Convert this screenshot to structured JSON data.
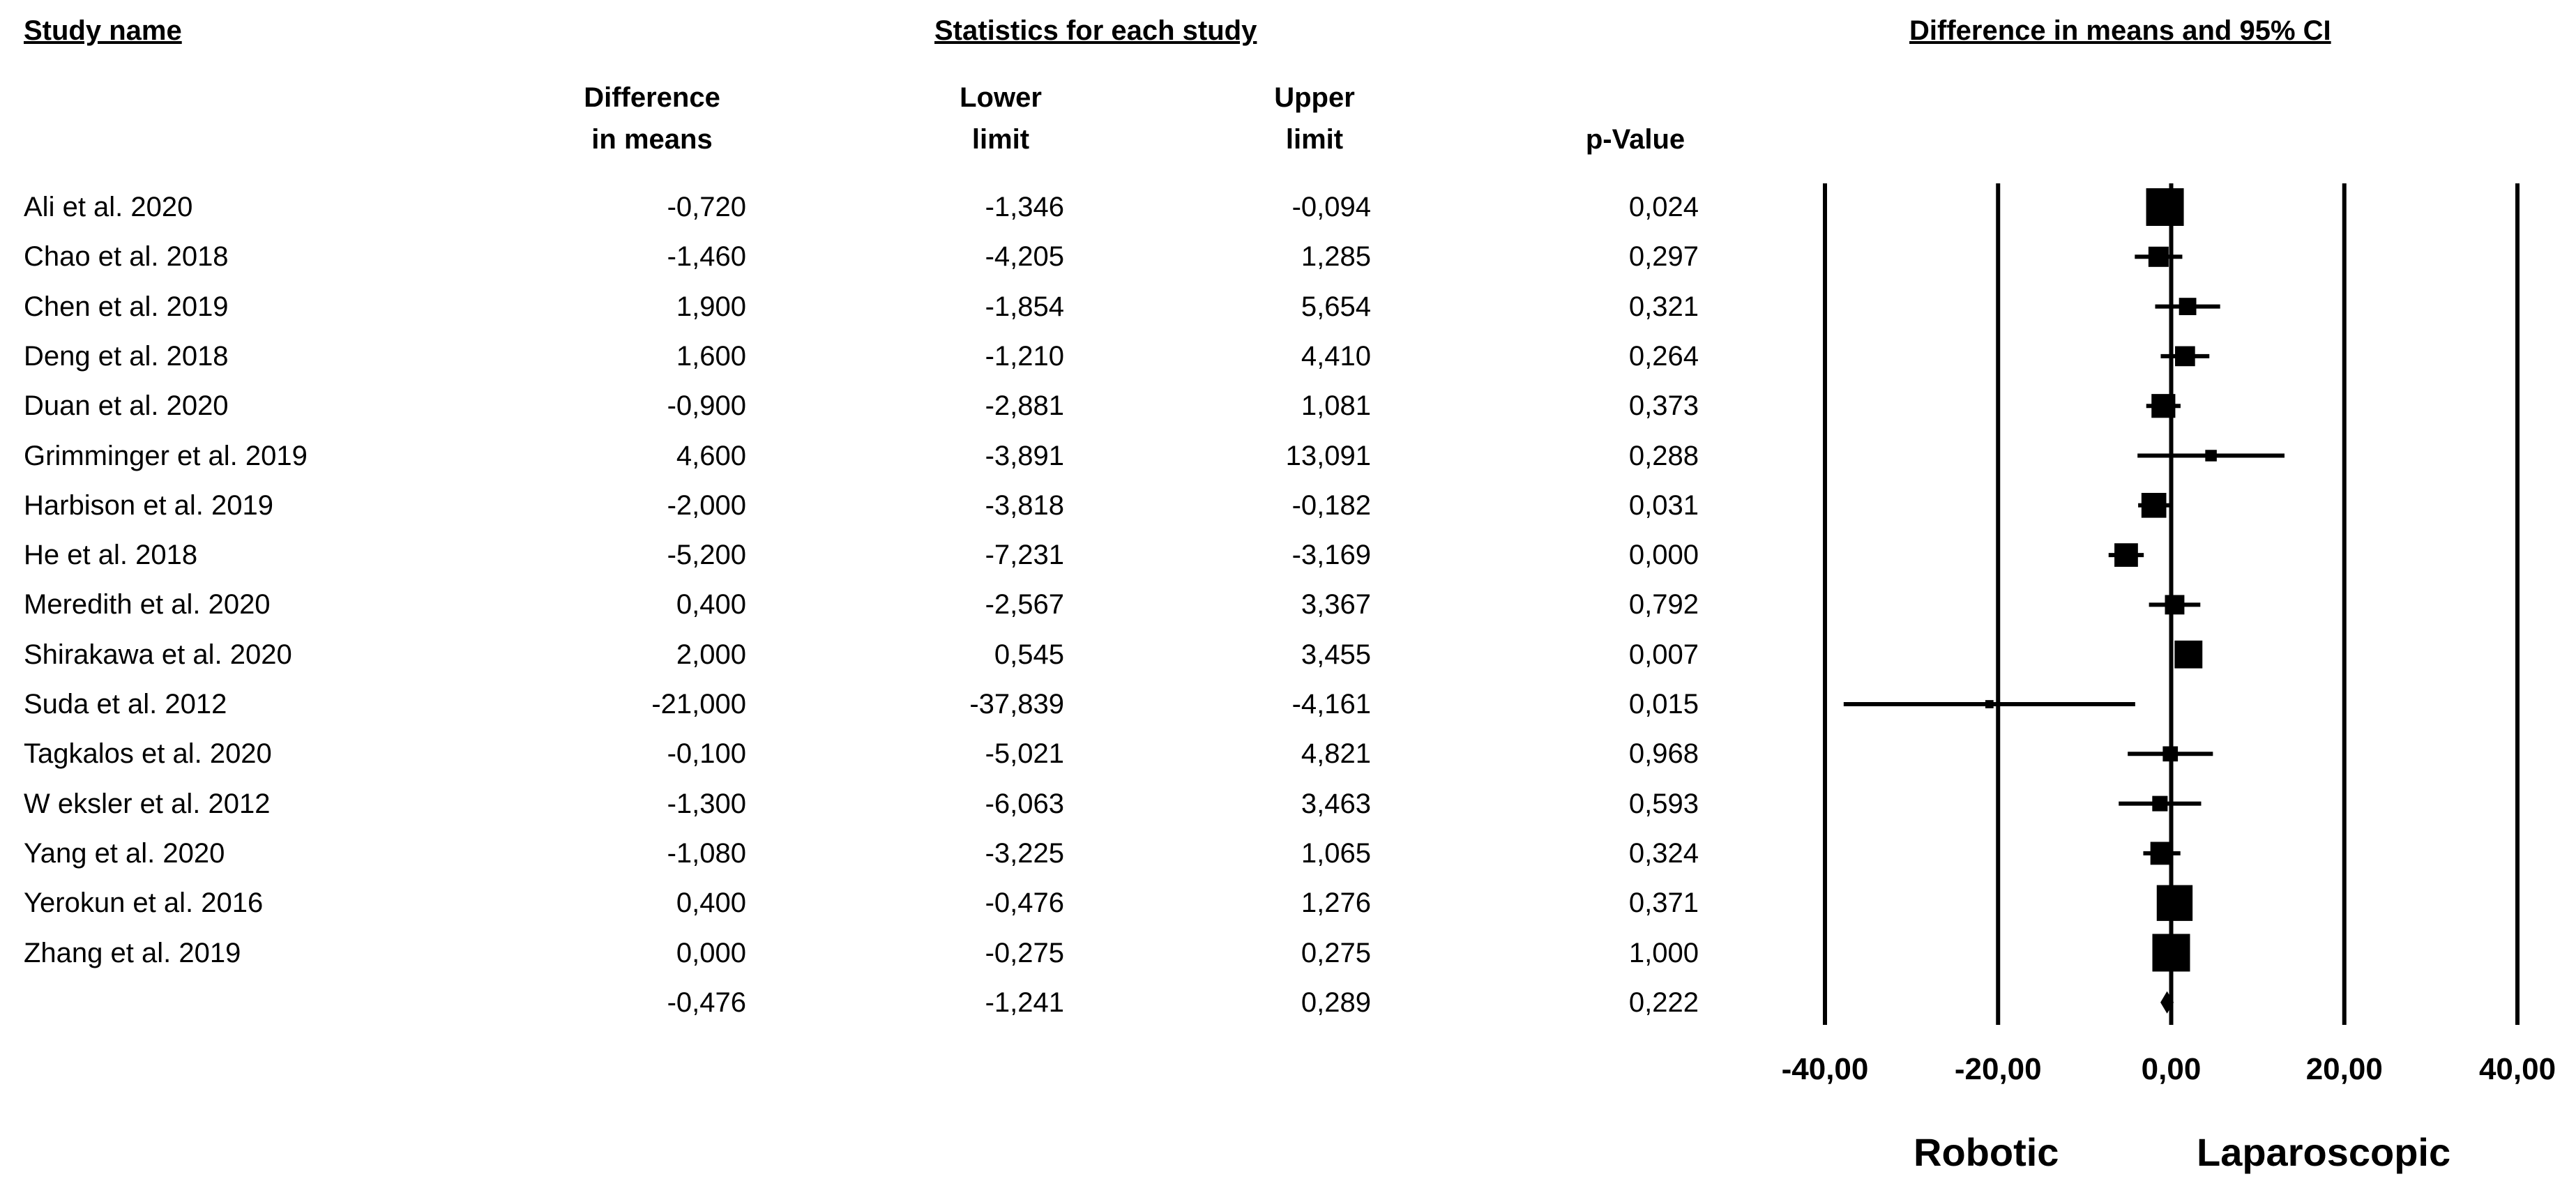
{
  "headers": {
    "study_name": "Study name",
    "statistics": "Statistics for each study",
    "forest": "Difference in means and 95% CI"
  },
  "columns": {
    "diff_line1": "Difference",
    "diff_line2": "in means",
    "lower_line1": "Lower",
    "lower_line2": "limit",
    "upper_line1": "Upper",
    "upper_line2": "limit",
    "pvalue": "p-Value"
  },
  "footer": {
    "left": "Robotic",
    "right": "Laparoscopic"
  },
  "chart_data": {
    "type": "forest",
    "xlim": [
      -40,
      40
    ],
    "x_ticks": [
      -40,
      -20,
      0,
      20,
      40
    ],
    "x_tick_labels": [
      "-40,00",
      "-20,00",
      "0,00",
      "20,00",
      "40,00"
    ],
    "studies": [
      {
        "name": "Ali et al. 2020",
        "diff": -0.72,
        "lower": -1.346,
        "upper": -0.094,
        "p": 0.024,
        "diff_label": "-0,720",
        "lower_label": "-1,346",
        "upper_label": "-0,094",
        "p_label": "0,024"
      },
      {
        "name": "Chao et al. 2018",
        "diff": -1.46,
        "lower": -4.205,
        "upper": 1.285,
        "p": 0.297,
        "diff_label": "-1,460",
        "lower_label": "-4,205",
        "upper_label": "1,285",
        "p_label": "0,297"
      },
      {
        "name": "Chen et al. 2019",
        "diff": 1.9,
        "lower": -1.854,
        "upper": 5.654,
        "p": 0.321,
        "diff_label": "1,900",
        "lower_label": "-1,854",
        "upper_label": "5,654",
        "p_label": "0,321"
      },
      {
        "name": "Deng et al. 2018",
        "diff": 1.6,
        "lower": -1.21,
        "upper": 4.41,
        "p": 0.264,
        "diff_label": "1,600",
        "lower_label": "-1,210",
        "upper_label": "4,410",
        "p_label": "0,264"
      },
      {
        "name": "Duan et al. 2020",
        "diff": -0.9,
        "lower": -2.881,
        "upper": 1.081,
        "p": 0.373,
        "diff_label": "-0,900",
        "lower_label": "-2,881",
        "upper_label": "1,081",
        "p_label": "0,373"
      },
      {
        "name": "Grimminger et al. 2019",
        "diff": 4.6,
        "lower": -3.891,
        "upper": 13.091,
        "p": 0.288,
        "diff_label": "4,600",
        "lower_label": "-3,891",
        "upper_label": "13,091",
        "p_label": "0,288"
      },
      {
        "name": "Harbison et al. 2019",
        "diff": -2.0,
        "lower": -3.818,
        "upper": -0.182,
        "p": 0.031,
        "diff_label": "-2,000",
        "lower_label": "-3,818",
        "upper_label": "-0,182",
        "p_label": "0,031"
      },
      {
        "name": "He et al. 2018",
        "diff": -5.2,
        "lower": -7.231,
        "upper": -3.169,
        "p": 0.0,
        "diff_label": "-5,200",
        "lower_label": "-7,231",
        "upper_label": "-3,169",
        "p_label": "0,000"
      },
      {
        "name": "Meredith et al. 2020",
        "diff": 0.4,
        "lower": -2.567,
        "upper": 3.367,
        "p": 0.792,
        "diff_label": "0,400",
        "lower_label": "-2,567",
        "upper_label": "3,367",
        "p_label": "0,792"
      },
      {
        "name": "Shirakawa et al. 2020",
        "diff": 2.0,
        "lower": 0.545,
        "upper": 3.455,
        "p": 0.007,
        "diff_label": "2,000",
        "lower_label": "0,545",
        "upper_label": "3,455",
        "p_label": "0,007"
      },
      {
        "name": "Suda et al. 2012",
        "diff": -21.0,
        "lower": -37.839,
        "upper": -4.161,
        "p": 0.015,
        "diff_label": "-21,000",
        "lower_label": "-37,839",
        "upper_label": "-4,161",
        "p_label": "0,015"
      },
      {
        "name": "Tagkalos et al. 2020",
        "diff": -0.1,
        "lower": -5.021,
        "upper": 4.821,
        "p": 0.968,
        "diff_label": "-0,100",
        "lower_label": "-5,021",
        "upper_label": "4,821",
        "p_label": "0,968"
      },
      {
        "name": "W eksler et al. 2012",
        "diff": -1.3,
        "lower": -6.063,
        "upper": 3.463,
        "p": 0.593,
        "diff_label": "-1,300",
        "lower_label": "-6,063",
        "upper_label": "3,463",
        "p_label": "0,593"
      },
      {
        "name": "Yang et al. 2020",
        "diff": -1.08,
        "lower": -3.225,
        "upper": 1.065,
        "p": 0.324,
        "diff_label": "-1,080",
        "lower_label": "-3,225",
        "upper_label": "1,065",
        "p_label": "0,324"
      },
      {
        "name": "Yerokun et al. 2016",
        "diff": 0.4,
        "lower": -0.476,
        "upper": 1.276,
        "p": 0.371,
        "diff_label": "0,400",
        "lower_label": "-0,476",
        "upper_label": "1,276",
        "p_label": "0,371"
      },
      {
        "name": "Zhang et al. 2019",
        "diff": 0.0,
        "lower": -0.275,
        "upper": 0.275,
        "p": 1.0,
        "diff_label": "0,000",
        "lower_label": "-0,275",
        "upper_label": "0,275",
        "p_label": "1,000"
      }
    ],
    "summary": {
      "name": "",
      "diff": -0.476,
      "lower": -1.241,
      "upper": 0.289,
      "p": 0.222,
      "diff_label": "-0,476",
      "lower_label": "-1,241",
      "upper_label": "0,289",
      "p_label": "0,222"
    },
    "grid": false
  }
}
